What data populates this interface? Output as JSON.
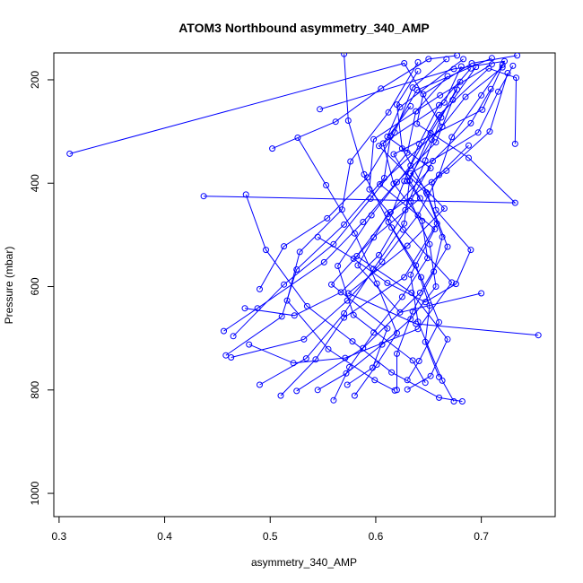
{
  "chart_data": {
    "type": "line",
    "title": "ATOM3 Northbound asymmetry_340_AMP",
    "xlabel": "asymmetry_340_AMP",
    "ylabel": "Pressure (mbar)",
    "xlim": [
      0.295,
      0.77
    ],
    "ylim": [
      1045,
      148
    ],
    "y_reversed": true,
    "grid": false,
    "legend": "none",
    "x_ticks": [
      0.3,
      0.4,
      0.5,
      0.6,
      0.7
    ],
    "x_tick_labels": [
      "0.3",
      "0.4",
      "0.5",
      "0.6",
      "0.7"
    ],
    "y_ticks": [
      200,
      400,
      600,
      800,
      1000
    ],
    "y_tick_labels": [
      "200",
      "400",
      "600",
      "800",
      "1000"
    ],
    "color": "#0000ff",
    "series": [
      {
        "values": [
          [
            0.31,
            343
          ],
          [
            0.627,
            168
          ],
          [
            0.663,
            291
          ],
          [
            0.604,
            402
          ],
          [
            0.656,
            489
          ],
          [
            0.633,
            577
          ],
          [
            0.64,
            668
          ],
          [
            0.663,
            782
          ],
          [
            0.674,
            822
          ]
        ]
      },
      {
        "values": [
          [
            0.683,
            160
          ],
          [
            0.623,
            253
          ],
          [
            0.611,
            310
          ],
          [
            0.652,
            371
          ],
          [
            0.614,
            456
          ],
          [
            0.582,
            541
          ],
          [
            0.634,
            612
          ],
          [
            0.668,
            702
          ],
          [
            0.652,
            773
          ],
          [
            0.63,
            799
          ]
        ]
      },
      {
        "values": [
          [
            0.437,
            425
          ],
          [
            0.732,
            438
          ],
          [
            0.688,
            351
          ],
          [
            0.639,
            285
          ],
          [
            0.645,
            228
          ],
          [
            0.691,
            168
          ],
          [
            0.734,
            153
          ]
        ]
      },
      {
        "values": [
          [
            0.547,
            257
          ],
          [
            0.674,
            179
          ],
          [
            0.722,
            164
          ],
          [
            0.701,
            258
          ],
          [
            0.617,
            344
          ],
          [
            0.642,
            429
          ],
          [
            0.598,
            505
          ],
          [
            0.558,
            596
          ],
          [
            0.611,
            681
          ],
          [
            0.597,
            757
          ],
          [
            0.573,
            790
          ]
        ]
      },
      {
        "values": [
          [
            0.754,
            694
          ],
          [
            0.638,
            672
          ],
          [
            0.574,
            613
          ],
          [
            0.63,
            521
          ],
          [
            0.665,
            449
          ],
          [
            0.633,
            381
          ],
          [
            0.697,
            302
          ],
          [
            0.716,
            223
          ],
          [
            0.73,
            173
          ]
        ]
      },
      {
        "values": [
          [
            0.458,
            733
          ],
          [
            0.511,
            658
          ],
          [
            0.525,
            567
          ],
          [
            0.57,
            480
          ],
          [
            0.608,
            390
          ],
          [
            0.614,
            309
          ],
          [
            0.639,
            220
          ],
          [
            0.71,
            158
          ]
        ]
      },
      {
        "values": [
          [
            0.525,
            802
          ],
          [
            0.588,
            719
          ],
          [
            0.642,
            612
          ],
          [
            0.668,
            523
          ],
          [
            0.649,
            422
          ],
          [
            0.603,
            328
          ],
          [
            0.665,
            244
          ],
          [
            0.681,
            174
          ]
        ]
      },
      {
        "values": [
          [
            0.477,
            422
          ],
          [
            0.496,
            529
          ],
          [
            0.535,
            638
          ],
          [
            0.578,
            706
          ],
          [
            0.615,
            766
          ],
          [
            0.66,
            815
          ],
          [
            0.682,
            822
          ]
        ]
      },
      {
        "values": [
          [
            0.502,
            333
          ],
          [
            0.562,
            281
          ],
          [
            0.605,
            217
          ],
          [
            0.65,
            160
          ],
          [
            0.677,
            153
          ]
        ]
      },
      {
        "values": [
          [
            0.7,
            613
          ],
          [
            0.623,
            650
          ],
          [
            0.583,
            559
          ],
          [
            0.611,
            460
          ],
          [
            0.667,
            376
          ],
          [
            0.708,
            300
          ],
          [
            0.725,
            187
          ]
        ]
      },
      {
        "values": [
          [
            0.48,
            712
          ],
          [
            0.522,
            748
          ],
          [
            0.571,
            738
          ],
          [
            0.64,
            682
          ],
          [
            0.672,
            592
          ],
          [
            0.626,
            490
          ],
          [
            0.594,
            412
          ],
          [
            0.598,
            315
          ],
          [
            0.661,
            230
          ],
          [
            0.71,
            170
          ]
        ]
      },
      {
        "values": [
          [
            0.64,
            166
          ],
          [
            0.612,
            263
          ],
          [
            0.576,
            358
          ],
          [
            0.568,
            451
          ],
          [
            0.528,
            533
          ],
          [
            0.516,
            627
          ],
          [
            0.555,
            721
          ],
          [
            0.599,
            781
          ],
          [
            0.618,
            801
          ]
        ]
      },
      {
        "values": [
          [
            0.51,
            811
          ],
          [
            0.543,
            741
          ],
          [
            0.57,
            660
          ],
          [
            0.627,
            582
          ],
          [
            0.658,
            478
          ],
          [
            0.63,
            396
          ],
          [
            0.653,
            316
          ],
          [
            0.685,
            233
          ],
          [
            0.72,
            176
          ]
        ]
      },
      {
        "values": [
          [
            0.456,
            686
          ],
          [
            0.488,
            642
          ],
          [
            0.551,
            553
          ],
          [
            0.588,
            475
          ],
          [
            0.62,
            398
          ],
          [
            0.657,
            321
          ],
          [
            0.673,
            239
          ],
          [
            0.695,
            175
          ]
        ]
      },
      {
        "values": [
          [
            0.465,
            696
          ],
          [
            0.513,
            596
          ],
          [
            0.56,
            518
          ],
          [
            0.595,
            430
          ],
          [
            0.63,
            341
          ],
          [
            0.638,
            261
          ],
          [
            0.668,
            193
          ]
        ]
      },
      {
        "values": [
          [
            0.732,
            324
          ],
          [
            0.733,
            196
          ],
          [
            0.707,
            178
          ],
          [
            0.66,
            268
          ],
          [
            0.633,
            366
          ],
          [
            0.596,
            462
          ],
          [
            0.564,
            560
          ],
          [
            0.579,
            655
          ],
          [
            0.635,
            743
          ],
          [
            0.647,
            786
          ]
        ]
      },
      {
        "values": [
          [
            0.57,
            150
          ],
          [
            0.574,
            279
          ],
          [
            0.589,
            383
          ],
          [
            0.615,
            486
          ],
          [
            0.643,
            582
          ],
          [
            0.66,
            669
          ],
          [
            0.641,
            744
          ],
          [
            0.63,
            781
          ]
        ]
      },
      {
        "values": [
          [
            0.526,
            312
          ],
          [
            0.553,
            404
          ],
          [
            0.58,
            497
          ],
          [
            0.601,
            594
          ],
          [
            0.62,
            690
          ],
          [
            0.601,
            751
          ],
          [
            0.58,
            811
          ]
        ]
      },
      {
        "values": [
          [
            0.476,
            642
          ],
          [
            0.523,
            656
          ],
          [
            0.567,
            611
          ],
          [
            0.603,
            539
          ],
          [
            0.628,
            452
          ],
          [
            0.647,
            356
          ],
          [
            0.662,
            273
          ],
          [
            0.68,
            204
          ]
        ]
      },
      {
        "values": [
          [
            0.463,
            737
          ],
          [
            0.532,
            702
          ],
          [
            0.573,
            627
          ],
          [
            0.606,
            552
          ],
          [
            0.64,
            462
          ],
          [
            0.66,
            384
          ],
          [
            0.672,
            311
          ],
          [
            0.7,
            230
          ],
          [
            0.72,
            171
          ]
        ]
      },
      {
        "values": [
          [
            0.49,
            790
          ],
          [
            0.534,
            739
          ],
          [
            0.57,
            652
          ],
          [
            0.598,
            566
          ],
          [
            0.627,
            478
          ],
          [
            0.632,
            395
          ],
          [
            0.652,
            303
          ],
          [
            0.677,
            219
          ]
        ]
      },
      {
        "values": [
          [
            0.62,
            800
          ],
          [
            0.62,
            730
          ],
          [
            0.635,
            648
          ],
          [
            0.655,
            571
          ],
          [
            0.663,
            504
          ],
          [
            0.648,
            418
          ],
          [
            0.625,
            333
          ],
          [
            0.62,
            248
          ],
          [
            0.64,
            183
          ]
        ]
      },
      {
        "values": [
          [
            0.56,
            820
          ],
          [
            0.575,
            756
          ],
          [
            0.598,
            689
          ],
          [
            0.625,
            620
          ],
          [
            0.649,
            545
          ],
          [
            0.644,
            473
          ],
          [
            0.617,
            401
          ],
          [
            0.607,
            323
          ],
          [
            0.633,
            251
          ]
        ]
      },
      {
        "values": [
          [
            0.49,
            605
          ],
          [
            0.513,
            522
          ],
          [
            0.554,
            468
          ],
          [
            0.592,
            389
          ],
          [
            0.618,
            302
          ],
          [
            0.635,
            215
          ],
          [
            0.667,
            160
          ]
        ]
      },
      {
        "values": [
          [
            0.66,
            775
          ],
          [
            0.647,
            707
          ],
          [
            0.651,
            637
          ],
          [
            0.638,
            559
          ],
          [
            0.612,
            475
          ],
          [
            0.627,
            396
          ],
          [
            0.641,
            324
          ],
          [
            0.66,
            249
          ],
          [
            0.69,
            178
          ]
        ]
      },
      {
        "values": [
          [
            0.545,
            800
          ],
          [
            0.572,
            768
          ],
          [
            0.606,
            712
          ],
          [
            0.633,
            663
          ],
          [
            0.657,
            600
          ],
          [
            0.651,
            518
          ],
          [
            0.633,
            435
          ],
          [
            0.654,
            357
          ],
          [
            0.69,
            284
          ],
          [
            0.709,
            218
          ]
        ]
      },
      {
        "values": [
          [
            0.545,
            504
          ],
          [
            0.579,
            546
          ],
          [
            0.611,
            593
          ],
          [
            0.647,
            630
          ],
          [
            0.676,
            595
          ],
          [
            0.69,
            529
          ],
          [
            0.657,
            452
          ],
          [
            0.653,
            398
          ],
          [
            0.688,
            327
          ]
        ]
      }
    ]
  }
}
